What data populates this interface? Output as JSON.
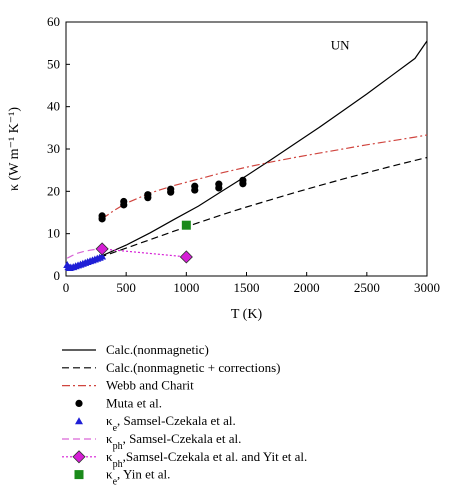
{
  "chart_data": {
    "type": "line",
    "title": "",
    "annotation": "UN",
    "xlabel": "T (K)",
    "ylabel": "κ (W m⁻¹ K⁻¹)",
    "xlim": [
      0,
      3000
    ],
    "ylim": [
      0,
      60
    ],
    "xticks": [
      0,
      500,
      1000,
      1500,
      2000,
      2500,
      3000
    ],
    "yticks": [
      0,
      10,
      20,
      30,
      40,
      50,
      60
    ],
    "grid": false,
    "legend_placement": "below",
    "series": [
      {
        "name": "Calc.(nonmagnetic)",
        "style": "solid",
        "color": "#000000",
        "x": [
          20,
          300,
          500,
          700,
          900,
          1100,
          1300,
          1500,
          1700,
          1900,
          2100,
          2300,
          2500,
          2700,
          2900,
          3000
        ],
        "y": [
          2.0,
          4.8,
          7.3,
          10.2,
          13.4,
          16.5,
          20.1,
          23.7,
          27.4,
          31.2,
          35.0,
          39.0,
          43.0,
          47.2,
          51.4,
          55.5
        ]
      },
      {
        "name": "Calc.(nonmagnetic + corrections)",
        "style": "dashed",
        "color": "#000000",
        "x": [
          20,
          300,
          500,
          700,
          900,
          1100,
          1300,
          1500,
          1700,
          1900,
          2100,
          2300,
          2500,
          2700,
          2900,
          3000
        ],
        "y": [
          1.8,
          4.6,
          6.6,
          8.6,
          10.6,
          12.6,
          14.5,
          16.3,
          18.0,
          19.7,
          21.3,
          22.9,
          24.4,
          25.9,
          27.3,
          28.0
        ]
      },
      {
        "name": "Webb and Charit",
        "style": "dashdot",
        "color": "#d0453f",
        "x": [
          300,
          400,
          500,
          700,
          900,
          1100,
          1300,
          1500,
          1700,
          1900,
          2100,
          2300,
          2500,
          2700,
          2900,
          3000
        ],
        "y": [
          13.5,
          15.5,
          17.2,
          19.6,
          21.4,
          22.9,
          24.4,
          25.7,
          26.9,
          28.0,
          29.0,
          30.0,
          31.0,
          31.9,
          32.8,
          33.3
        ]
      },
      {
        "name": "Muta et al.",
        "marker": "circle",
        "color": "#000000",
        "x": [
          300,
          300,
          480,
          480,
          680,
          680,
          870,
          870,
          1070,
          1070,
          1270,
          1270,
          1470,
          1470
        ],
        "y": [
          13.5,
          14.2,
          16.8,
          17.6,
          18.5,
          19.2,
          19.8,
          20.5,
          20.3,
          21.2,
          20.8,
          21.7,
          21.8,
          22.6
        ]
      },
      {
        "name": "κe, Samsel-Czekala et al.",
        "marker": "triangle",
        "color": "#1f1fd6",
        "x": [
          10,
          20,
          30,
          40,
          60,
          80,
          100,
          120,
          140,
          160,
          180,
          200,
          220,
          240,
          260,
          280,
          300
        ],
        "y": [
          2.6,
          2.1,
          1.9,
          2.0,
          2.1,
          2.3,
          2.5,
          2.7,
          2.9,
          3.1,
          3.3,
          3.5,
          3.7,
          3.9,
          4.1,
          4.3,
          4.6
        ]
      },
      {
        "name": "κph, Samsel-Czekala et al.",
        "style": "dashed",
        "color": "#d966d6",
        "x": [
          10,
          50,
          100,
          150,
          200,
          250,
          300
        ],
        "y": [
          4.2,
          4.8,
          5.4,
          5.8,
          6.1,
          6.3,
          6.4
        ]
      },
      {
        "name": "κph,Samsel-Czekala et al. and Yit et al.",
        "marker": "diamond",
        "style": "dotted",
        "color": "#d61fd6",
        "x": [
          300,
          1000
        ],
        "y": [
          6.4,
          4.5
        ]
      },
      {
        "name": "κe, Yin et al.",
        "marker": "square",
        "color": "#1a8a1a",
        "x": [
          1000
        ],
        "y": [
          12.0
        ]
      }
    ]
  }
}
